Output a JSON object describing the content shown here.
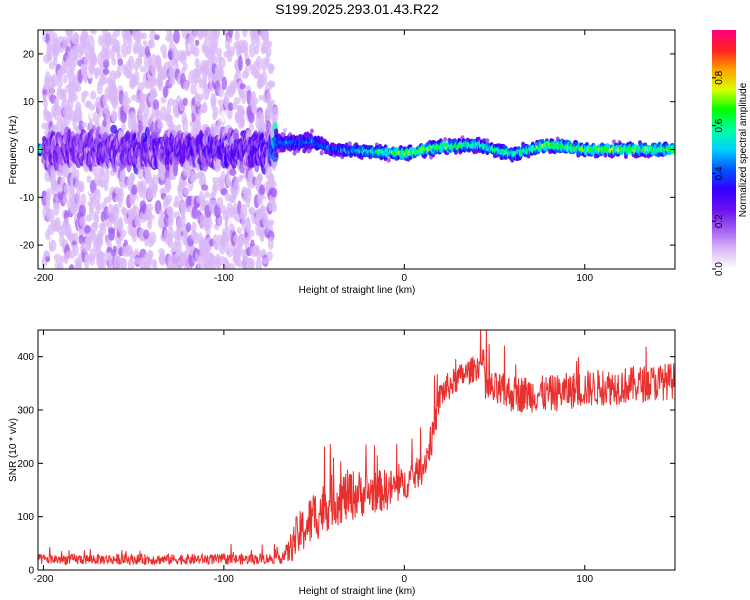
{
  "title": "S199.2025.293.01.43.R22",
  "colors": {
    "signal_line": "#e8302f",
    "spectrum_scale": [
      "#ffffff",
      "#d9b8f7",
      "#a15bf2",
      "#6a0ef0",
      "#3300ff",
      "#0055ff",
      "#00d0ff",
      "#00ffa0",
      "#00ff00",
      "#d8ff00",
      "#ffa000",
      "#ff2020",
      "#ff0080"
    ]
  },
  "chart_data": [
    {
      "type": "heatmap",
      "title": "S199.2025.293.01.43.R22",
      "xlabel": "Height of straight line (km)",
      "ylabel": "Frequency (Hz)",
      "xlim": [
        -203,
        150
      ],
      "ylim": [
        -25,
        25
      ],
      "xticks": [
        -200,
        -100,
        0,
        100
      ],
      "xtick_labels": [
        "-200",
        "-100",
        "0",
        "100"
      ],
      "yticks": [
        -20,
        -10,
        0,
        10,
        20
      ],
      "ytick_labels": [
        "-20",
        "-10",
        "0",
        "10",
        "20"
      ],
      "colorbar": {
        "label": "Normalized spectral amplitude",
        "range": [
          0,
          1
        ],
        "ticks": [
          0.0,
          0.2,
          0.4,
          0.6,
          0.8
        ],
        "tick_labels": [
          "0.0",
          "0.2",
          "0.4",
          "0.6",
          "0.8"
        ]
      },
      "description_points": [
        {
          "x": -200,
          "center_hz": 0.0,
          "spread_hz": 25,
          "peak_amplitude": 0.2
        },
        {
          "x": -75,
          "center_hz": 0.0,
          "spread_hz": 25,
          "peak_amplitude": 0.25
        },
        {
          "x": -70,
          "center_hz": 1.5,
          "spread_hz": 3,
          "peak_amplitude": 0.5
        },
        {
          "x": -50,
          "center_hz": 1.5,
          "spread_hz": 3,
          "peak_amplitude": 0.5
        },
        {
          "x": -40,
          "center_hz": 0.0,
          "spread_hz": 2,
          "peak_amplitude": 0.5
        },
        {
          "x": 0,
          "center_hz": -0.8,
          "spread_hz": 2,
          "peak_amplitude": 0.8
        },
        {
          "x": 20,
          "center_hz": 0.5,
          "spread_hz": 2,
          "peak_amplitude": 0.8
        },
        {
          "x": 40,
          "center_hz": 1.0,
          "spread_hz": 2,
          "peak_amplitude": 0.7
        },
        {
          "x": 60,
          "center_hz": -1.0,
          "spread_hz": 2,
          "peak_amplitude": 0.7
        },
        {
          "x": 80,
          "center_hz": 1.0,
          "spread_hz": 2,
          "peak_amplitude": 0.8
        },
        {
          "x": 100,
          "center_hz": 0.0,
          "spread_hz": 2,
          "peak_amplitude": 0.8
        },
        {
          "x": 130,
          "center_hz": 0.0,
          "spread_hz": 2,
          "peak_amplitude": 0.8
        },
        {
          "x": 150,
          "center_hz": 0.0,
          "spread_hz": 2,
          "peak_amplitude": 0.8
        }
      ]
    },
    {
      "type": "line",
      "xlabel": "Height of straight line (km)",
      "ylabel": "SNR (10 * v/v)",
      "xlim": [
        -203,
        150
      ],
      "ylim": [
        0,
        450
      ],
      "xticks": [
        -200,
        -100,
        0,
        100
      ],
      "xtick_labels": [
        "-200",
        "-100",
        "0",
        "100"
      ],
      "yticks": [
        0,
        100,
        200,
        300,
        400
      ],
      "ytick_labels": [
        "0",
        "100",
        "200",
        "300",
        "400"
      ],
      "series": [
        {
          "name": "SNR",
          "x": [
            -203,
            -180,
            -150,
            -120,
            -90,
            -70,
            -65,
            -60,
            -50,
            -40,
            -30,
            -20,
            -10,
            0,
            10,
            15,
            20,
            30,
            40,
            44,
            45,
            60,
            80,
            100,
            120,
            150
          ],
          "y": [
            20,
            20,
            20,
            20,
            20,
            22,
            30,
            60,
            100,
            130,
            140,
            145,
            150,
            160,
            190,
            240,
            330,
            360,
            380,
            390,
            340,
            330,
            330,
            340,
            345,
            355
          ],
          "noise": [
            10,
            10,
            10,
            10,
            10,
            10,
            20,
            40,
            50,
            50,
            50,
            40,
            40,
            30,
            30,
            30,
            30,
            25,
            25,
            25,
            35,
            35,
            35,
            35,
            35,
            35
          ]
        }
      ]
    }
  ]
}
